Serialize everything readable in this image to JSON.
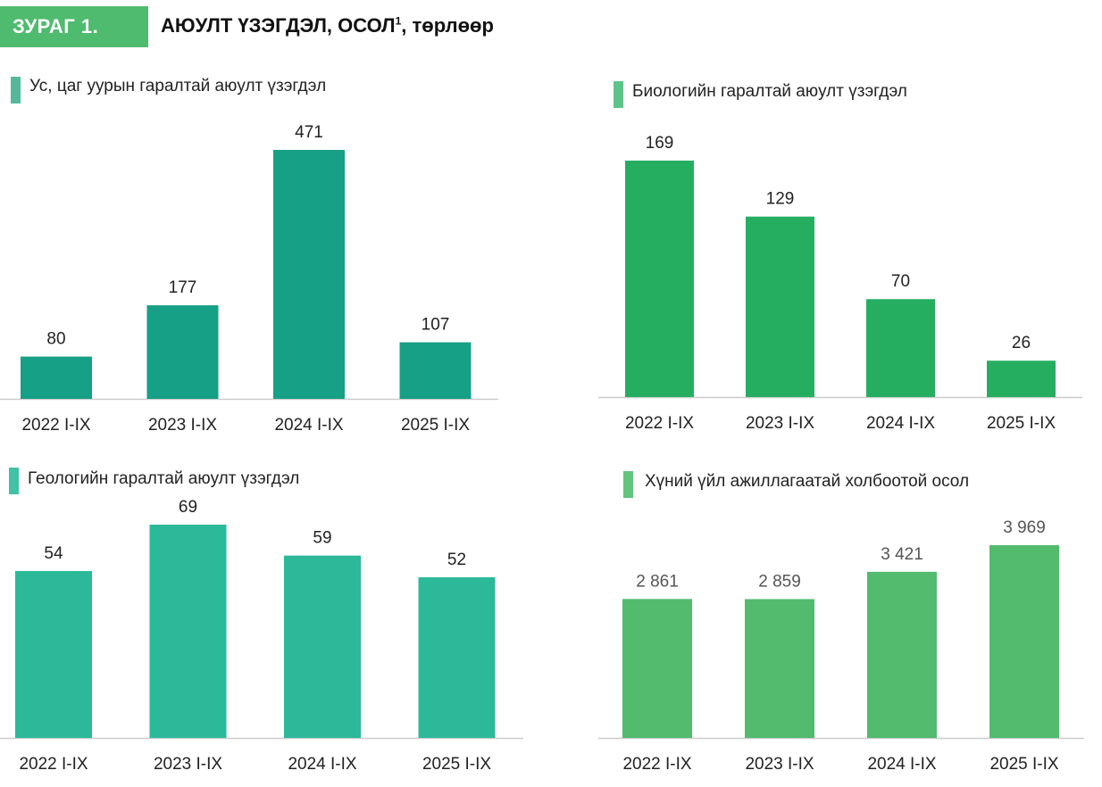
{
  "header": {
    "badge": "ЗУРАГ 1.",
    "title": "АЮУЛТ ҮЗЭГДЭЛ, ОСОЛ",
    "title_sup": "1",
    "title_suffix": ", төрлөөр"
  },
  "chart_data": [
    {
      "type": "bar",
      "title": "Ус, цаг уурын гаралтай аюулт үзэгдэл",
      "categories": [
        "2022 I-IX",
        "2023 I-IX",
        "2024 I-IX",
        "2025 I-IX"
      ],
      "values": [
        80,
        177,
        471,
        107
      ],
      "labels": [
        "80",
        "177",
        "471",
        "107"
      ],
      "color": "#16a085",
      "marker_color": "#54b99a"
    },
    {
      "type": "bar",
      "title": "Биологийн гаралтай аюулт үзэгдэл",
      "categories": [
        "2022 I-IX",
        "2023 I-IX",
        "2024 I-IX",
        "2025 I-IX"
      ],
      "values": [
        169,
        129,
        70,
        26
      ],
      "labels": [
        "169",
        "129",
        "70",
        "26"
      ],
      "color": "#26ae60",
      "marker_color": "#5cc58a"
    },
    {
      "type": "bar",
      "title": "Геологийн гаралтай аюулт үзэгдэл",
      "categories": [
        "2022 I-IX",
        "2023 I-IX",
        "2024 I-IX",
        "2025 I-IX"
      ],
      "values": [
        54,
        69,
        59,
        52
      ],
      "labels": [
        "54",
        "69",
        "59",
        "52"
      ],
      "color": "#2bb99a",
      "marker_color": "#3fc2a6"
    },
    {
      "type": "bar",
      "title": "Хүний үйл ажиллагаатай холбоотой осол",
      "categories": [
        "2022 I-IX",
        "2023 I-IX",
        "2024 I-IX",
        "2025 I-IX"
      ],
      "values": [
        2861,
        2859,
        3421,
        3969
      ],
      "labels": [
        "2 861",
        "2 859",
        "3 421",
        "3 969"
      ],
      "color": "#52bb6e",
      "marker_color": "#63c47e"
    }
  ]
}
